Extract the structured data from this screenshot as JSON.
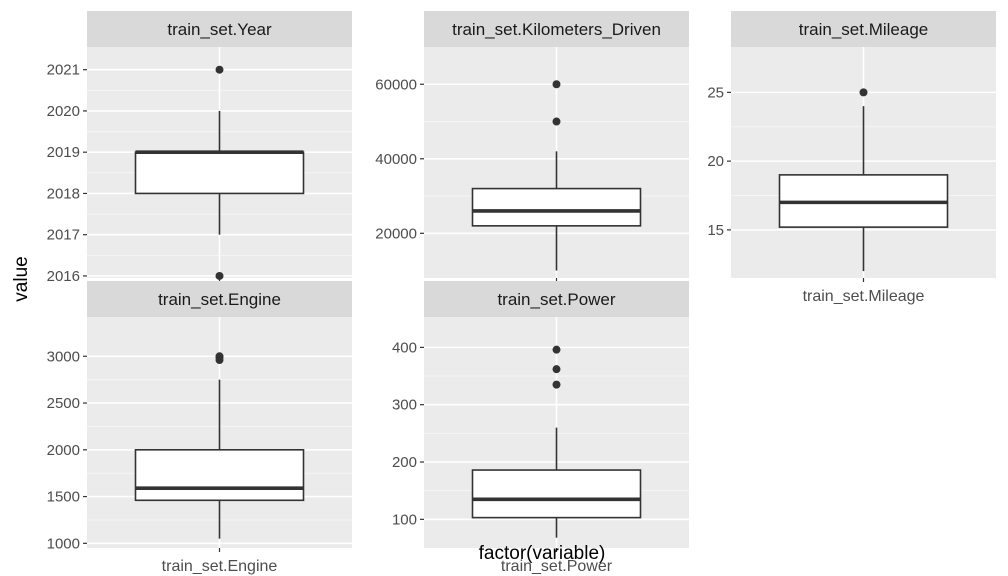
{
  "chart_data": {
    "type": "boxplot",
    "xlabel": "factor(variable)",
    "ylabel": "value",
    "colors": {
      "panel_background": "#ebebeb",
      "grid_major": "#ffffff",
      "grid_minor": "#f5f5f5",
      "strip_background": "#d9d9d9",
      "box_fill": "#ffffff",
      "box_line": "#333333",
      "outlier": "#333333"
    },
    "panels": [
      {
        "title": "train_set.Year",
        "category": "train_set.Year",
        "ylim": [
          2015.95,
          2021.55
        ],
        "yticks": [
          2016,
          2017,
          2018,
          2019,
          2020,
          2021
        ],
        "ytick_labels": [
          "2016",
          "2017",
          "2018",
          "2019",
          "2020",
          "2021"
        ],
        "box": {
          "whisker_low": 2017,
          "q1": 2018,
          "median": 2019,
          "q3": 2019,
          "whisker_high": 2020
        },
        "outliers": [
          2016,
          2021
        ]
      },
      {
        "title": "train_set.Kilometers_Driven",
        "category": "train_set.Kilometers_Driven",
        "ylim": [
          8000,
          70000
        ],
        "yticks": [
          20000,
          40000,
          60000
        ],
        "ytick_labels": [
          "20000",
          "40000",
          "60000"
        ],
        "box": {
          "whisker_low": 10000,
          "q1": 22000,
          "median": 26000,
          "q3": 32000,
          "whisker_high": 42000
        },
        "outliers": [
          50000,
          60000
        ]
      },
      {
        "title": "train_set.Mileage",
        "category": "train_set.Mileage",
        "ylim": [
          11.5,
          28.3
        ],
        "yticks": [
          15,
          20,
          25
        ],
        "ytick_labels": [
          "15",
          "20",
          "25"
        ],
        "box": {
          "whisker_low": 12,
          "q1": 15.2,
          "median": 17,
          "q3": 19,
          "whisker_high": 24
        },
        "outliers": [
          25
        ]
      },
      {
        "title": "train_set.Engine",
        "category": "train_set.Engine",
        "ylim": [
          950,
          3420
        ],
        "yticks": [
          1000,
          1500,
          2000,
          2500,
          3000
        ],
        "ytick_labels": [
          "1000",
          "1500",
          "2000",
          "2500",
          "3000"
        ],
        "box": {
          "whisker_low": 1050,
          "q1": 1460,
          "median": 1590,
          "q3": 2000,
          "whisker_high": 2750
        },
        "outliers": [
          2960,
          2990,
          3000
        ]
      },
      {
        "title": "train_set.Power",
        "category": "train_set.Power",
        "ylim": [
          50,
          453
        ],
        "yticks": [
          100,
          200,
          300,
          400
        ],
        "ytick_labels": [
          "100",
          "200",
          "300",
          "400"
        ],
        "box": {
          "whisker_low": 68,
          "q1": 103,
          "median": 135,
          "q3": 186,
          "whisker_high": 260
        },
        "outliers": [
          335,
          362,
          396
        ]
      }
    ]
  }
}
